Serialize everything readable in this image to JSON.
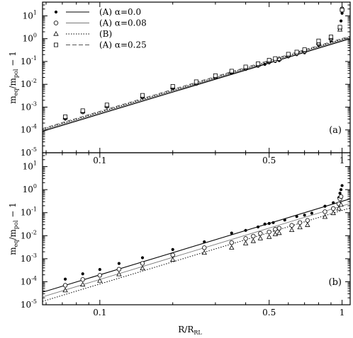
{
  "chart_data": [
    {
      "type": "scatter",
      "panel_label": "(a)",
      "xlabel": "",
      "ylabel": "ṁ_eq/ṁ_pol − 1",
      "ylabel_parts": {
        "m": "m",
        "eq": "eq",
        "slash": "/",
        "pol": "pol",
        "minus": "− 1"
      },
      "xlim": [
        0.058,
        1.08
      ],
      "ylim": [
        1e-05,
        40
      ],
      "xscale": "log",
      "yscale": "log",
      "x_ticks": [
        "0.1",
        "0.5",
        "1"
      ],
      "x_tick_values": [
        0.1,
        0.5,
        1
      ],
      "y_ticks": [
        {
          "base": "10",
          "exp": "-5",
          "value": 1e-05
        },
        {
          "base": "10",
          "exp": "-4",
          "value": 0.0001
        },
        {
          "base": "10",
          "exp": "-3",
          "value": 0.001
        },
        {
          "base": "10",
          "exp": "-2",
          "value": 0.01
        },
        {
          "base": "10",
          "exp": "-1",
          "value": 0.1
        },
        {
          "base": "10",
          "exp": "0",
          "value": 1
        },
        {
          "base": "10",
          "exp": "1",
          "value": 10
        }
      ],
      "legend": {
        "placement": "top-left",
        "entries": [
          {
            "marker": "dot",
            "line": "solid",
            "label": "(A) α=0.0"
          },
          {
            "marker": "circle",
            "line": "solid-light",
            "label": "(A) α=0.08"
          },
          {
            "marker": "triangle",
            "line": "dotted",
            "label": "(B)"
          },
          {
            "marker": "square",
            "line": "dashed",
            "label": "(A) α=0.25"
          }
        ]
      },
      "series": [
        {
          "name": "(A) α=0.0",
          "marker": "dot",
          "line": "solid",
          "line_points": [
            [
              0.058,
              8.7e-05
            ],
            [
              1.08,
              1.0
            ]
          ],
          "points": [
            [
              0.072,
              0.0003
            ],
            [
              0.085,
              0.00057
            ],
            [
              0.107,
              0.001
            ],
            [
              0.15,
              0.0026
            ],
            [
              0.2,
              0.0064
            ],
            [
              0.25,
              0.01
            ],
            [
              0.3,
              0.019
            ],
            [
              0.35,
              0.03
            ],
            [
              0.4,
              0.045
            ],
            [
              0.45,
              0.062
            ],
            [
              0.48,
              0.075
            ],
            [
              0.5,
              0.087
            ],
            [
              0.53,
              0.1
            ],
            [
              0.55,
              0.11
            ],
            [
              0.6,
              0.16
            ],
            [
              0.65,
              0.2
            ],
            [
              0.7,
              0.24
            ],
            [
              0.8,
              0.5
            ],
            [
              0.9,
              0.8
            ],
            [
              0.98,
              3.0
            ],
            [
              0.99,
              6.0
            ],
            [
              1.0,
              13.0
            ]
          ]
        },
        {
          "name": "(A) α=0.08",
          "marker": "circle",
          "line": "solid-light",
          "line_points": [
            [
              0.058,
              9.6e-05
            ],
            [
              1.08,
              1.1
            ]
          ],
          "points": [
            [
              0.072,
              0.00034
            ],
            [
              0.085,
              0.00062
            ],
            [
              0.107,
              0.0011
            ],
            [
              0.15,
              0.0029
            ],
            [
              0.2,
              0.0072
            ],
            [
              0.25,
              0.011
            ],
            [
              0.3,
              0.021
            ],
            [
              0.35,
              0.034
            ],
            [
              0.4,
              0.05
            ],
            [
              0.45,
              0.07
            ],
            [
              0.5,
              0.1
            ],
            [
              0.53,
              0.115
            ],
            [
              0.6,
              0.18
            ],
            [
              0.65,
              0.23
            ],
            [
              0.7,
              0.28
            ],
            [
              0.8,
              0.6
            ],
            [
              0.9,
              1.0
            ],
            [
              0.98,
              2.8
            ],
            [
              1.0,
              20.0
            ]
          ]
        },
        {
          "name": "(B)",
          "marker": "triangle",
          "line": "dotted",
          "line_points": [
            [
              0.058,
              0.000105
            ],
            [
              1.08,
              1.2
            ]
          ],
          "points": [
            [
              0.072,
              0.00035
            ],
            [
              0.085,
              0.00065
            ],
            [
              0.107,
              0.00115
            ],
            [
              0.15,
              0.003
            ],
            [
              0.2,
              0.0075
            ],
            [
              0.25,
              0.0115
            ],
            [
              0.3,
              0.022
            ],
            [
              0.35,
              0.035
            ],
            [
              0.4,
              0.053
            ],
            [
              0.45,
              0.072
            ],
            [
              0.5,
              0.105
            ],
            [
              0.55,
              0.13
            ],
            [
              0.6,
              0.19
            ],
            [
              0.7,
              0.3
            ],
            [
              0.8,
              0.65
            ],
            [
              0.9,
              1.1
            ],
            [
              0.98,
              2.5
            ],
            [
              1.0,
              21.0
            ]
          ]
        },
        {
          "name": "(A) α=0.25",
          "marker": "square",
          "line": "dashed",
          "line_points": [
            [
              0.058,
              0.000115
            ],
            [
              1.08,
              1.3
            ]
          ],
          "points": [
            [
              0.072,
              0.00038
            ],
            [
              0.085,
              0.0007
            ],
            [
              0.107,
              0.00125
            ],
            [
              0.15,
              0.0033
            ],
            [
              0.2,
              0.0082
            ],
            [
              0.25,
              0.013
            ],
            [
              0.3,
              0.024
            ],
            [
              0.35,
              0.038
            ],
            [
              0.4,
              0.058
            ],
            [
              0.45,
              0.08
            ],
            [
              0.5,
              0.115
            ],
            [
              0.53,
              0.135
            ],
            [
              0.6,
              0.21
            ],
            [
              0.65,
              0.26
            ],
            [
              0.7,
              0.33
            ],
            [
              0.8,
              0.8
            ],
            [
              0.9,
              1.2
            ],
            [
              0.98,
              3.2
            ],
            [
              1.0,
              18.0
            ]
          ]
        }
      ]
    },
    {
      "type": "scatter",
      "panel_label": "(b)",
      "xlabel": "R/R_RL",
      "xlabel_parts": {
        "r": "R/R",
        "sub": "RL"
      },
      "ylabel": "ṁ_eq/ṁ_pol − 1",
      "ylabel_parts": {
        "m": "m",
        "eq": "eq",
        "slash": "/",
        "pol": "pol",
        "minus": "− 1"
      },
      "xlim": [
        0.058,
        1.08
      ],
      "ylim": [
        1e-05,
        40
      ],
      "xscale": "log",
      "yscale": "log",
      "x_ticks": [
        "0.1",
        "0.5",
        "1"
      ],
      "x_tick_values": [
        0.1,
        0.5,
        1
      ],
      "y_ticks": [
        {
          "base": "10",
          "exp": "-5",
          "value": 1e-05
        },
        {
          "base": "10",
          "exp": "-4",
          "value": 0.0001
        },
        {
          "base": "10",
          "exp": "-3",
          "value": 0.001
        },
        {
          "base": "10",
          "exp": "-2",
          "value": 0.01
        },
        {
          "base": "10",
          "exp": "-1",
          "value": 0.1
        },
        {
          "base": "10",
          "exp": "0",
          "value": 1
        },
        {
          "base": "10",
          "exp": "1",
          "value": 10
        }
      ],
      "series": [
        {
          "name": "(A) α=0.0",
          "marker": "dot",
          "line": "solid",
          "line_points": [
            [
              0.058,
              3.5e-05
            ],
            [
              1.08,
              0.4
            ]
          ],
          "points": [
            [
              0.072,
              0.00013
            ],
            [
              0.085,
              0.00022
            ],
            [
              0.1,
              0.00034
            ],
            [
              0.12,
              0.00062
            ],
            [
              0.15,
              0.0011
            ],
            [
              0.2,
              0.0025
            ],
            [
              0.27,
              0.0054
            ],
            [
              0.35,
              0.013
            ],
            [
              0.4,
              0.017
            ],
            [
              0.45,
              0.024
            ],
            [
              0.48,
              0.032
            ],
            [
              0.5,
              0.034
            ],
            [
              0.52,
              0.037
            ],
            [
              0.58,
              0.048
            ],
            [
              0.65,
              0.068
            ],
            [
              0.7,
              0.078
            ],
            [
              0.75,
              0.095
            ],
            [
              0.85,
              0.19
            ],
            [
              0.92,
              0.27
            ],
            [
              0.97,
              0.45
            ],
            [
              0.98,
              0.7
            ],
            [
              0.99,
              1.0
            ],
            [
              1.0,
              1.5
            ]
          ]
        },
        {
          "name": "(A) α=0.08",
          "marker": "circle",
          "line": "solid-light",
          "line_points": [
            [
              0.058,
              2.2e-05
            ],
            [
              1.08,
              0.25
            ]
          ],
          "points": [
            [
              0.072,
              7e-05
            ],
            [
              0.085,
              0.000125
            ],
            [
              0.1,
              0.00019
            ],
            [
              0.12,
              0.00035
            ],
            [
              0.15,
              0.00063
            ],
            [
              0.2,
              0.00145
            ],
            [
              0.27,
              0.003
            ],
            [
              0.35,
              0.005
            ],
            [
              0.4,
              0.0075
            ],
            [
              0.43,
              0.0095
            ],
            [
              0.46,
              0.0125
            ],
            [
              0.5,
              0.0145
            ],
            [
              0.53,
              0.019
            ],
            [
              0.55,
              0.021
            ],
            [
              0.62,
              0.028
            ],
            [
              0.67,
              0.037
            ],
            [
              0.72,
              0.046
            ],
            [
              0.85,
              0.11
            ],
            [
              0.92,
              0.15
            ],
            [
              0.97,
              0.24
            ],
            [
              0.98,
              0.4
            ],
            [
              0.99,
              0.5
            ]
          ]
        },
        {
          "name": "(B)",
          "marker": "triangle",
          "line": "dotted",
          "line_points": [
            [
              0.058,
              1.4e-05
            ],
            [
              1.08,
              0.16
            ]
          ],
          "points": [
            [
              0.072,
              4.2e-05
            ],
            [
              0.085,
              7.5e-05
            ],
            [
              0.1,
              0.00011
            ],
            [
              0.12,
              0.00021
            ],
            [
              0.15,
              0.00038
            ],
            [
              0.2,
              0.0009
            ],
            [
              0.27,
              0.0018
            ],
            [
              0.35,
              0.003
            ],
            [
              0.4,
              0.0046
            ],
            [
              0.43,
              0.0058
            ],
            [
              0.46,
              0.0076
            ],
            [
              0.5,
              0.0088
            ],
            [
              0.53,
              0.0115
            ],
            [
              0.55,
              0.013
            ],
            [
              0.62,
              0.0175
            ],
            [
              0.67,
              0.023
            ],
            [
              0.72,
              0.029
            ],
            [
              0.85,
              0.065
            ],
            [
              0.92,
              0.095
            ],
            [
              0.97,
              0.15
            ],
            [
              0.99,
              0.22
            ]
          ]
        }
      ]
    }
  ]
}
